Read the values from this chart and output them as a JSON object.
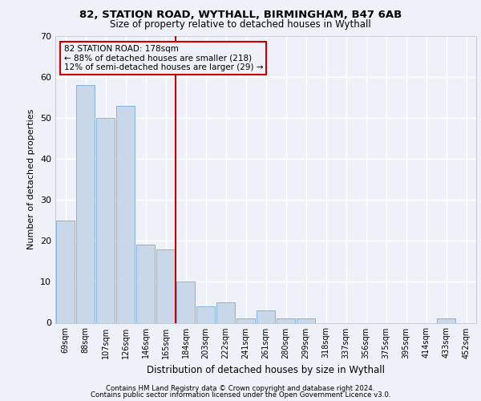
{
  "title1": "82, STATION ROAD, WYTHALL, BIRMINGHAM, B47 6AB",
  "title2": "Size of property relative to detached houses in Wythall",
  "xlabel": "Distribution of detached houses by size in Wythall",
  "ylabel": "Number of detached properties",
  "categories": [
    "69sqm",
    "88sqm",
    "107sqm",
    "126sqm",
    "146sqm",
    "165sqm",
    "184sqm",
    "203sqm",
    "222sqm",
    "241sqm",
    "261sqm",
    "280sqm",
    "299sqm",
    "318sqm",
    "337sqm",
    "356sqm",
    "375sqm",
    "395sqm",
    "414sqm",
    "433sqm",
    "452sqm"
  ],
  "values": [
    25,
    58,
    50,
    53,
    19,
    18,
    10,
    4,
    5,
    1,
    3,
    1,
    1,
    0,
    0,
    0,
    0,
    0,
    0,
    1,
    0
  ],
  "bar_color": "#c8d8e8",
  "bar_edge_color": "#7aabe0",
  "vline_color": "#cc0000",
  "vline_pos": 5.5,
  "annotation_text": "82 STATION ROAD: 178sqm\n← 88% of detached houses are smaller (218)\n12% of semi-detached houses are larger (29) →",
  "annotation_box_color": "#cc0000",
  "ylim": [
    0,
    70
  ],
  "yticks": [
    0,
    10,
    20,
    30,
    40,
    50,
    60,
    70
  ],
  "footer1": "Contains HM Land Registry data © Crown copyright and database right 2024.",
  "footer2": "Contains public sector information licensed under the Open Government Licence v3.0.",
  "background_color": "#eef2f8",
  "grid_color": "#ffffff"
}
